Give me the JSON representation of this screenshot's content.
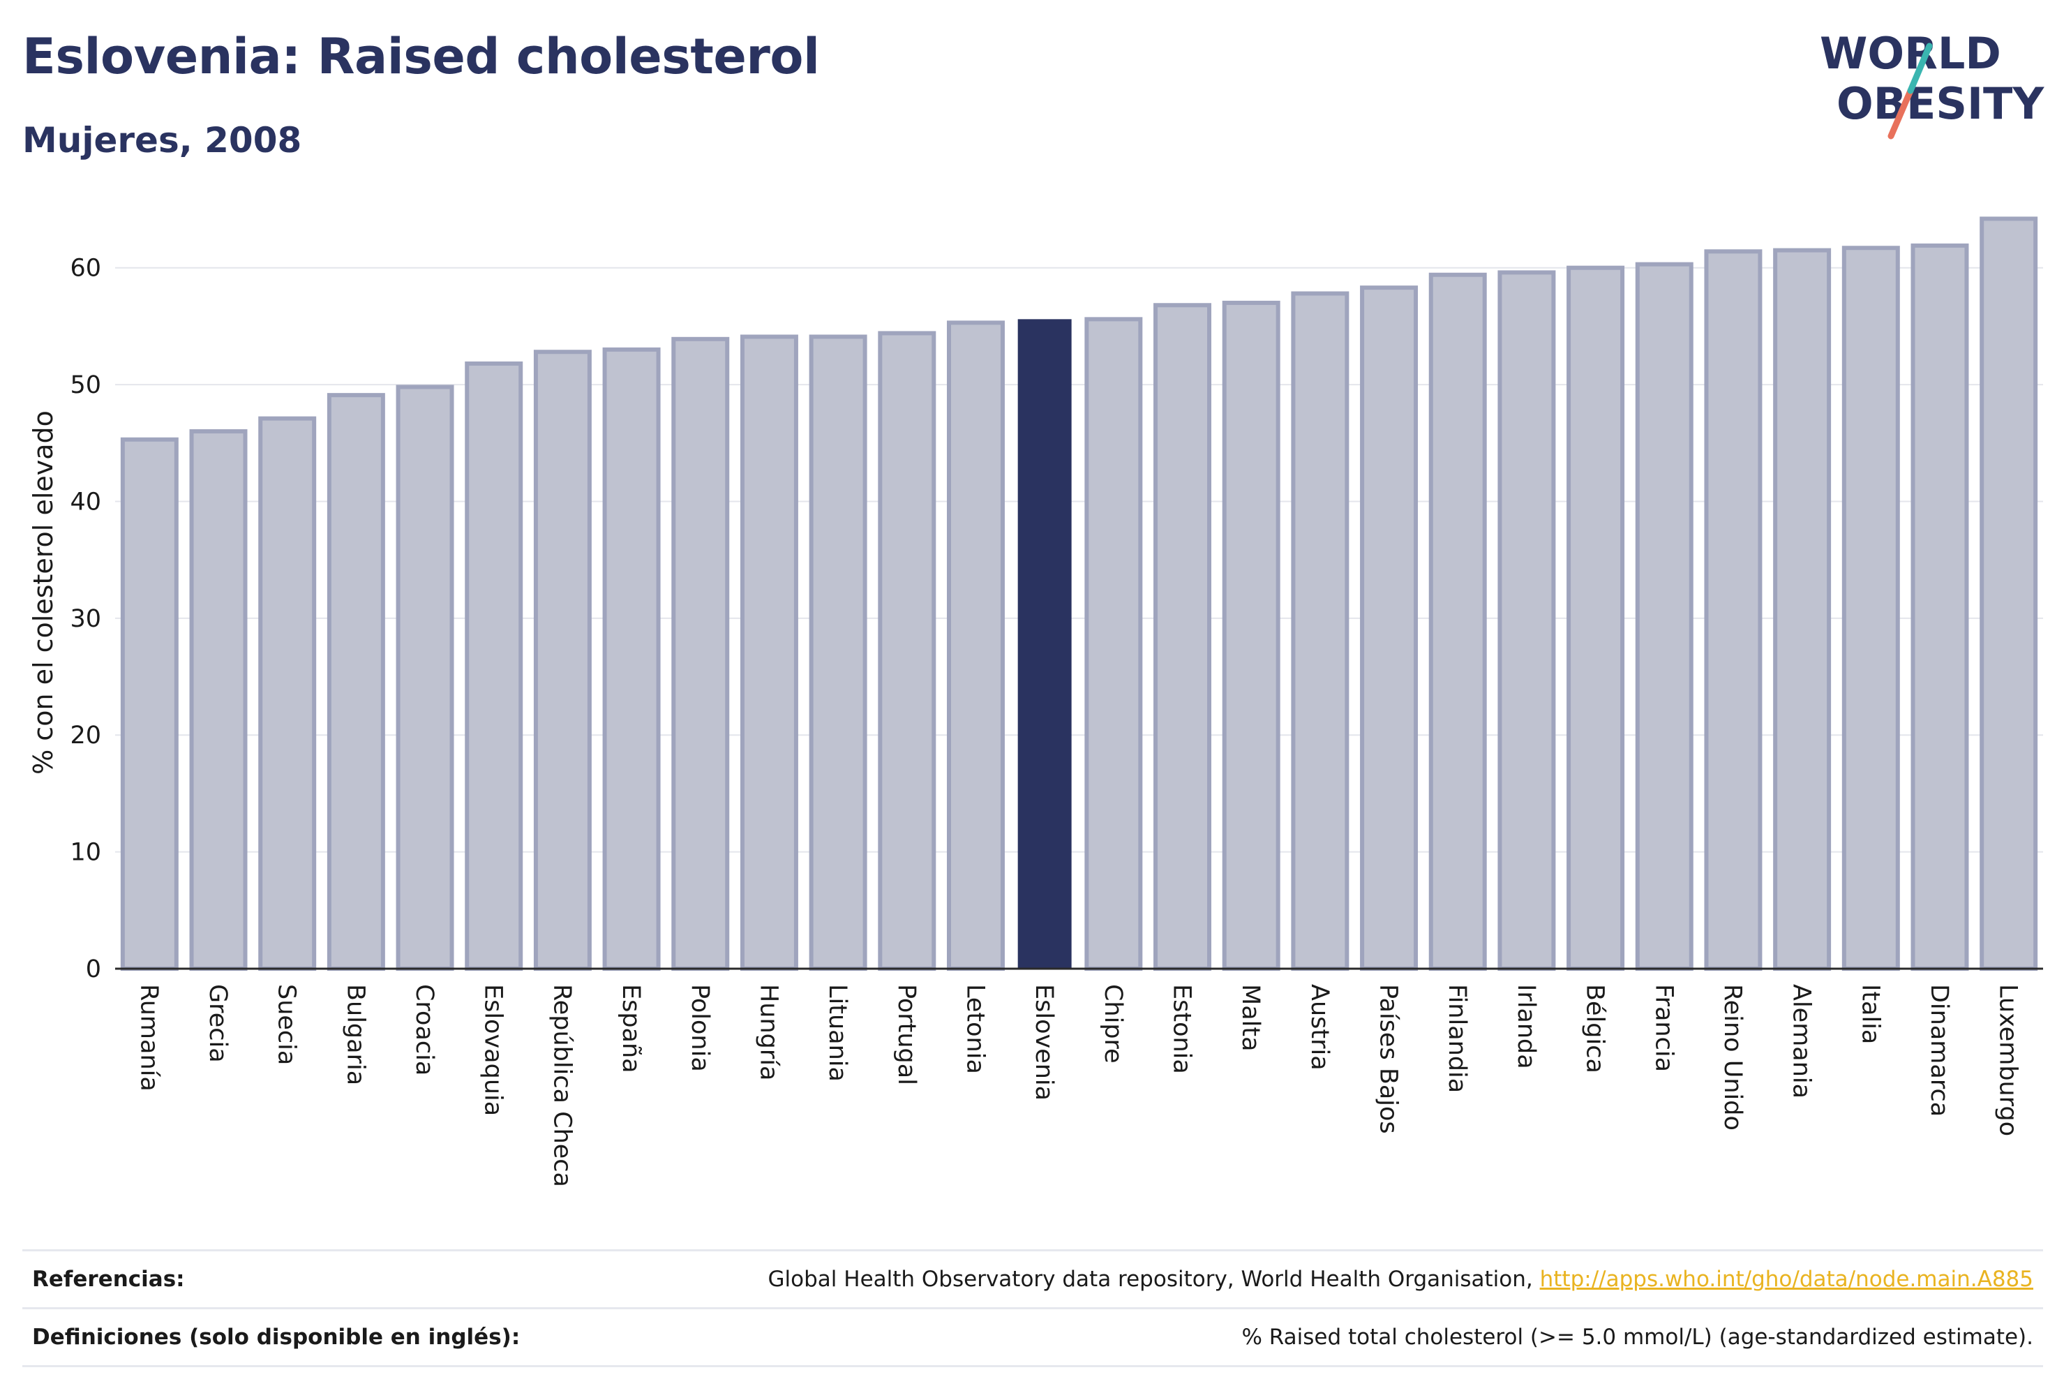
{
  "header": {
    "title": "Eslovenia: Raised cholesterol",
    "subtitle": "Mujeres, 2008"
  },
  "logo": {
    "line1": "WORLD",
    "line2": "OBESITY",
    "colors": {
      "text": "#2a3360",
      "slash_teal": "#3ab5b0",
      "slash_coral": "#e8715b"
    }
  },
  "chart_data": {
    "type": "bar",
    "title": "",
    "ylabel": "% con el colesterol elevado",
    "xlabel": "",
    "ylim": [
      0,
      65
    ],
    "yticks": [
      0,
      10,
      20,
      30,
      40,
      50,
      60
    ],
    "grid": true,
    "legend": "none",
    "highlight_category": "Eslovenia",
    "colors": {
      "bar": "#bfc2d0",
      "bar_border": "#9fa4bd",
      "highlight": "#2a3360"
    },
    "categories": [
      "Rumanía",
      "Grecia",
      "Suecia",
      "Bulgaria",
      "Croacia",
      "Eslovaquia",
      "República Checa",
      "España",
      "Polonia",
      "Hungría",
      "Lituania",
      "Portugal",
      "Letonia",
      "Eslovenia",
      "Chipre",
      "Estonia",
      "Malta",
      "Austria",
      "Países Bajos",
      "Finlandia",
      "Irlanda",
      "Bélgica",
      "Francia",
      "Reino Unido",
      "Alemania",
      "Italia",
      "Dinamarca",
      "Luxemburgo"
    ],
    "values": [
      45.3,
      46.0,
      47.1,
      49.1,
      49.8,
      51.8,
      52.8,
      53.0,
      53.9,
      54.1,
      54.1,
      54.4,
      55.3,
      55.6,
      55.6,
      56.8,
      57.0,
      57.8,
      58.3,
      59.4,
      59.6,
      60.0,
      60.3,
      61.4,
      61.5,
      61.7,
      61.9,
      64.2
    ]
  },
  "footer": {
    "references_label": "Referencias:",
    "references_text": "Global Health Observatory data repository, World Health Organisation, ",
    "references_link": "http://apps.who.int/gho/data/node.main.A885",
    "definitions_label": "Definiciones (solo disponible en inglés):",
    "definitions_text": "% Raised total cholesterol (>= 5.0 mmol/L) (age-standardized estimate)."
  }
}
